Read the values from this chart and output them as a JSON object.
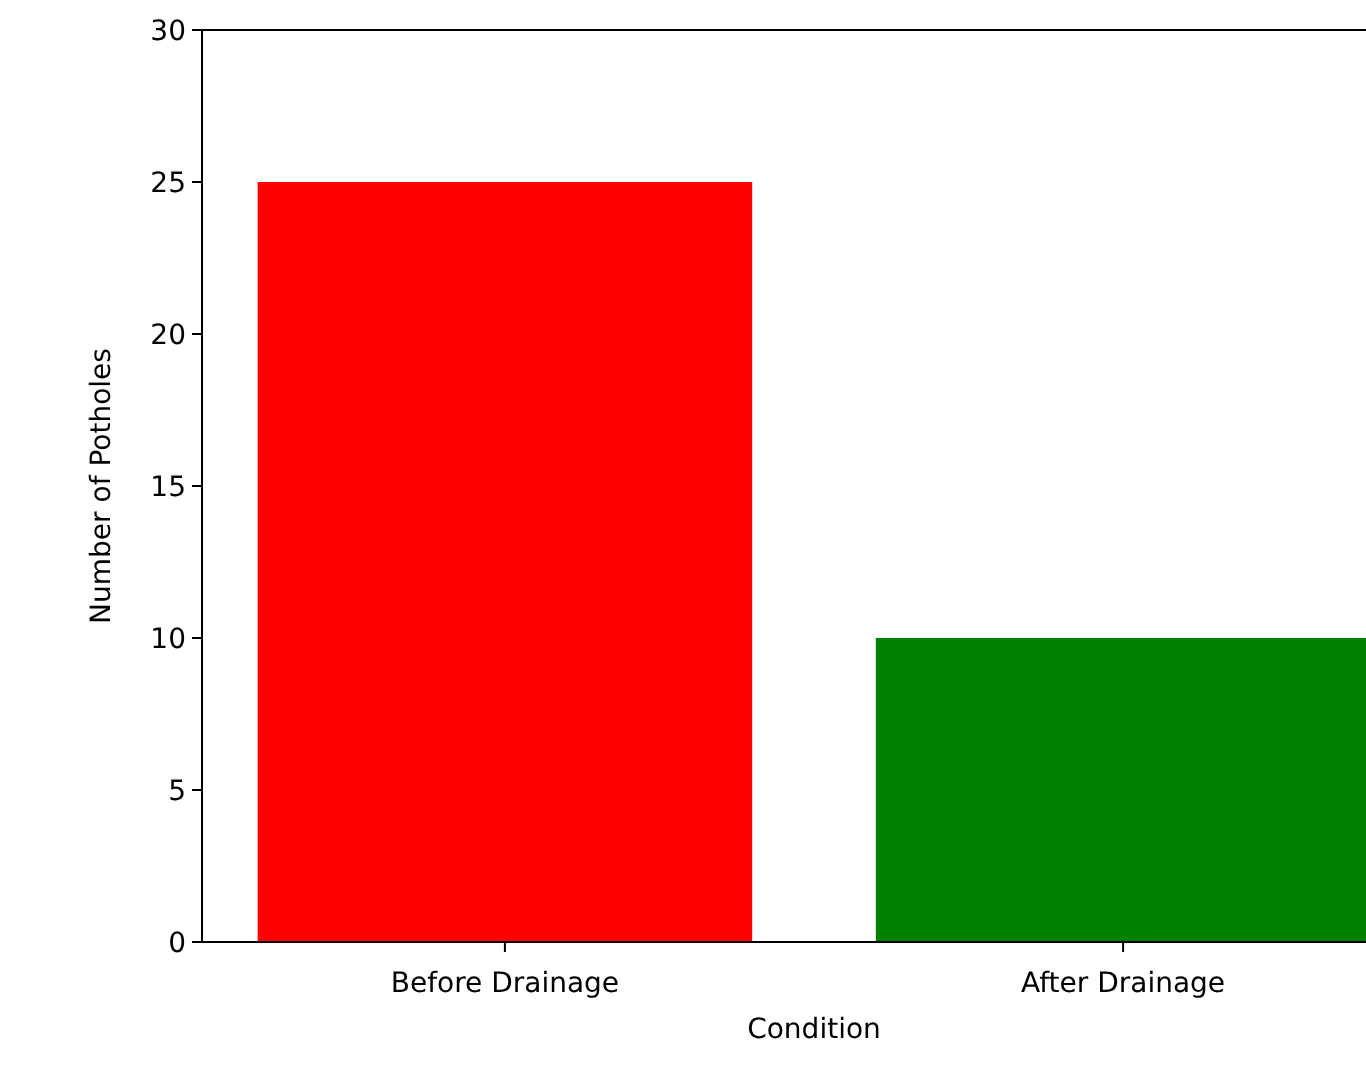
{
  "chart_data": {
    "type": "bar",
    "xlabel": "Condition",
    "ylabel": "Number of Potholes",
    "categories": [
      "Before Drainage",
      "After Drainage"
    ],
    "values": [
      25,
      10
    ],
    "colors": [
      "#ff0000",
      "#008000"
    ],
    "ylim": [
      0,
      30
    ],
    "yticks": [
      0,
      5,
      10,
      15,
      20,
      25,
      30
    ]
  }
}
